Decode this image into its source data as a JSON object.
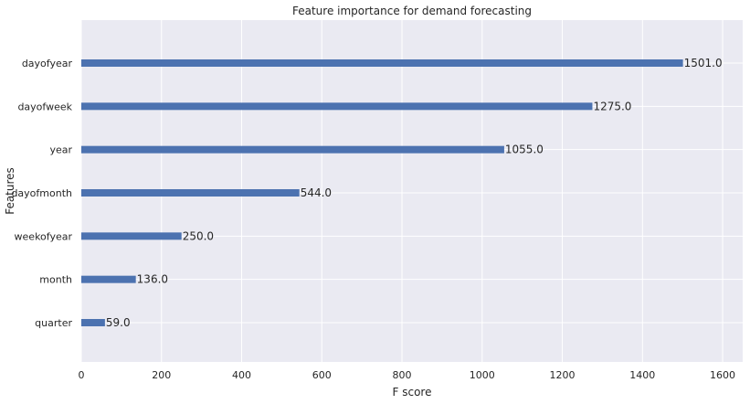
{
  "chart_data": {
    "type": "bar",
    "orientation": "horizontal",
    "title": "Feature importance for demand forecasting",
    "xlabel": "F score",
    "ylabel": "Features",
    "categories": [
      "dayofyear",
      "dayofweek",
      "year",
      "dayofmonth",
      "weekofyear",
      "month",
      "quarter"
    ],
    "values": [
      1501.0,
      1275.0,
      1055.0,
      544.0,
      250.0,
      136.0,
      59.0
    ],
    "data_labels": [
      "1501.0",
      "1275.0",
      "1055.0",
      "544.0",
      "250.0",
      "136.0",
      "59.0"
    ],
    "xlim": [
      0,
      1650
    ],
    "xticks": [
      0,
      200,
      400,
      600,
      800,
      1000,
      1200,
      1400,
      1600
    ],
    "xtick_labels": [
      "0",
      "200",
      "400",
      "600",
      "800",
      "1000",
      "1200",
      "1400",
      "1600"
    ],
    "grid": true,
    "bar_color": "#4c72b0",
    "background_color": "#eaeaf2",
    "grid_color": "#ffffff"
  }
}
